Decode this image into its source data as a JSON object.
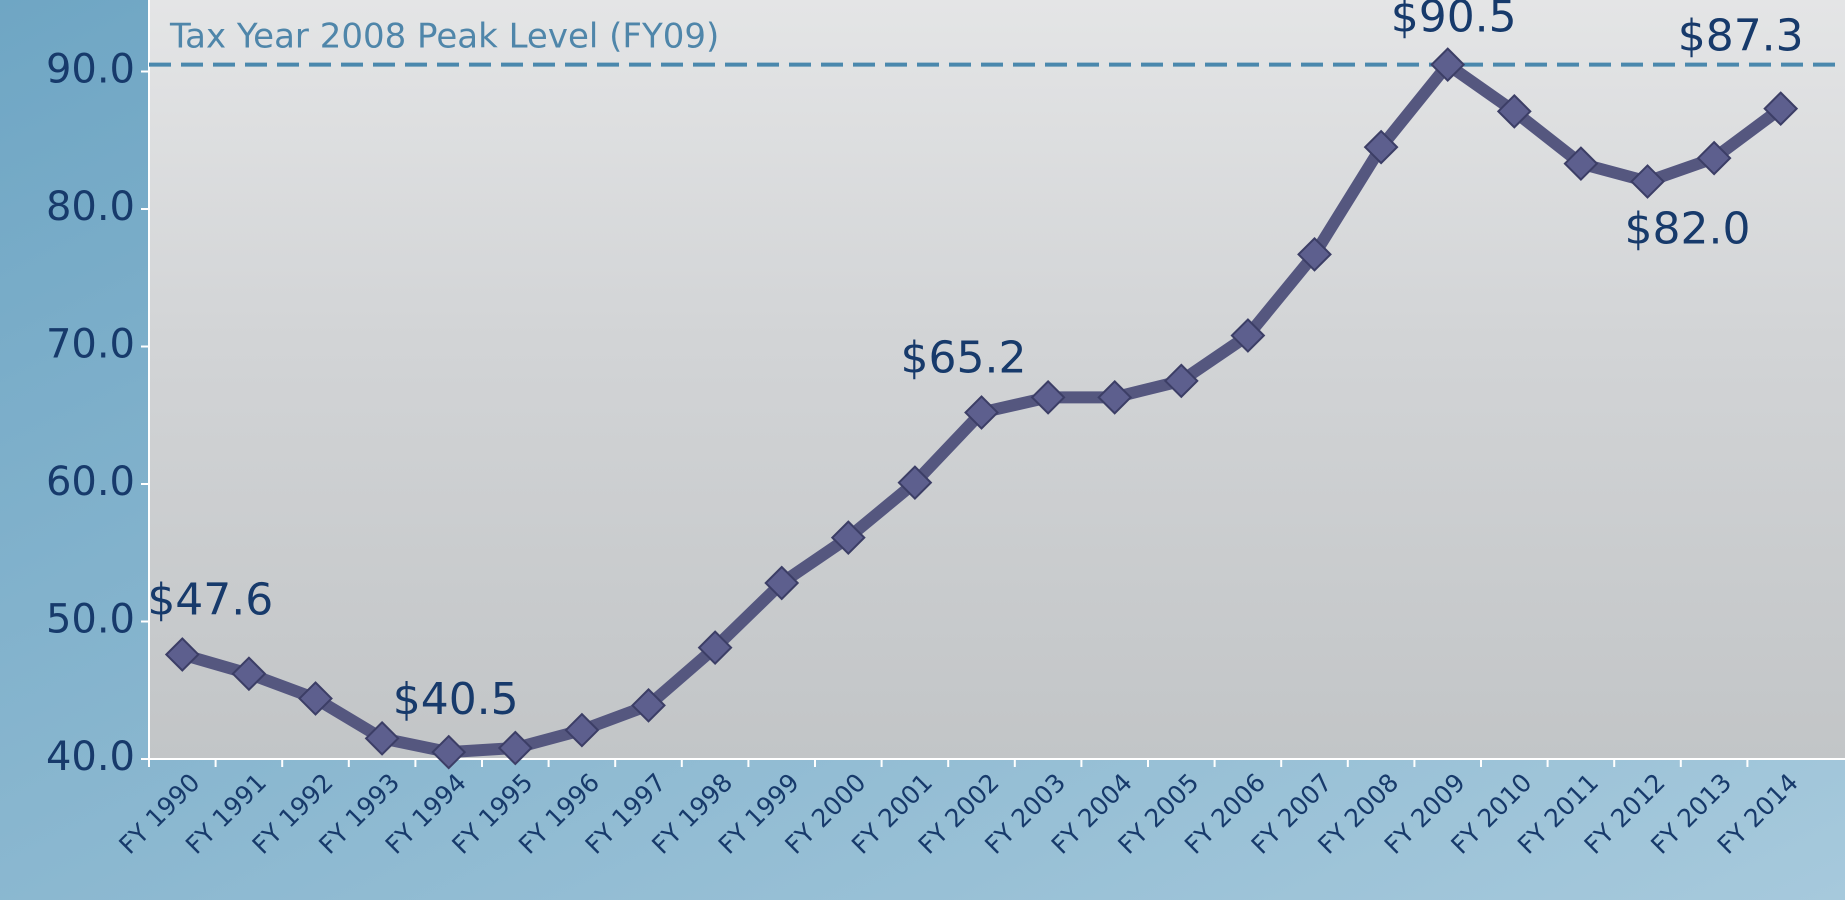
{
  "chart_data": {
    "type": "line",
    "categories": [
      "FY 1990",
      "FY 1991",
      "FY 1992",
      "FY 1993",
      "FY 1994",
      "FY 1995",
      "FY 1996",
      "FY 1997",
      "FY 1998",
      "FY 1999",
      "FY 2000",
      "FY 2001",
      "FY 2002",
      "FY 2003",
      "FY 2004",
      "FY 2005",
      "FY 2006",
      "FY 2007",
      "FY 2008",
      "FY 2009",
      "FY 2010",
      "FY 2011",
      "FY 2012",
      "FY 2013",
      "FY 2014"
    ],
    "values": [
      47.6,
      46.2,
      44.4,
      41.5,
      40.5,
      40.8,
      42.1,
      43.9,
      48.1,
      52.8,
      56.1,
      60.1,
      65.2,
      66.3,
      66.3,
      67.5,
      70.8,
      76.7,
      84.5,
      90.5,
      87.1,
      83.3,
      82.0,
      83.7,
      87.3
    ],
    "color": "#55577f",
    "data_labels": [
      {
        "index": 0,
        "label": "$47.6"
      },
      {
        "index": 4,
        "label": "$40.5"
      },
      {
        "index": 12,
        "label": "$65.2"
      },
      {
        "index": 19,
        "label": "$90.5"
      },
      {
        "index": 22,
        "label": "$82.0"
      },
      {
        "index": 24,
        "label": "$87.3"
      }
    ],
    "reference_line": {
      "value": 90.5,
      "label": "Tax Year 2008 Peak Level (FY09)"
    },
    "ylim": [
      40,
      95.2
    ],
    "yticks": [
      {
        "value": 40,
        "label": "40.0"
      },
      {
        "value": 50,
        "label": "50.0"
      },
      {
        "value": 60,
        "label": "60.0"
      },
      {
        "value": 70,
        "label": "70.0"
      },
      {
        "value": 80,
        "label": "80.0"
      },
      {
        "value": 90,
        "label": "90.0"
      }
    ]
  }
}
